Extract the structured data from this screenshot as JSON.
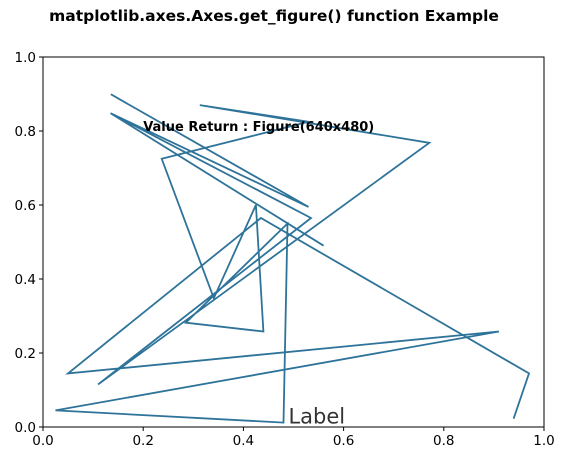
{
  "chart_data": {
    "type": "line",
    "title": "matplotlib.axes.Axes.get_figure() function Example",
    "xlabel": "",
    "ylabel": "",
    "xlim": [
      0.0,
      1.0
    ],
    "ylim": [
      0.0,
      1.0
    ],
    "xticks": [
      "0.0",
      "0.2",
      "0.4",
      "0.6",
      "0.8",
      "1.0"
    ],
    "yticks": [
      "0.0",
      "0.2",
      "0.4",
      "0.6",
      "0.8",
      "1.0"
    ],
    "grid": false,
    "legend": "none",
    "series": [
      {
        "color": "#2e7399",
        "x": [
          0.137,
          0.53,
          0.135,
          0.56,
          0.135,
          0.535,
          0.11,
          0.771,
          0.313,
          0.53,
          0.237,
          0.341,
          0.425,
          0.44,
          0.285,
          0.488,
          0.48,
          0.025,
          0.91,
          0.05,
          0.435,
          0.97,
          0.94
        ],
        "y": [
          0.898,
          0.595,
          0.848,
          0.49,
          0.848,
          0.565,
          0.115,
          0.768,
          0.87,
          0.825,
          0.725,
          0.348,
          0.6,
          0.258,
          0.282,
          0.55,
          0.012,
          0.045,
          0.258,
          0.145,
          0.565,
          0.145,
          0.025
        ]
      }
    ],
    "annotations": [
      {
        "text": "Value Return : Figure(640x480)",
        "x": 0.2,
        "y": 0.8,
        "style": "bold"
      },
      {
        "text": "Label",
        "x": 0.49,
        "y": 0.01,
        "style": "large"
      }
    ]
  }
}
